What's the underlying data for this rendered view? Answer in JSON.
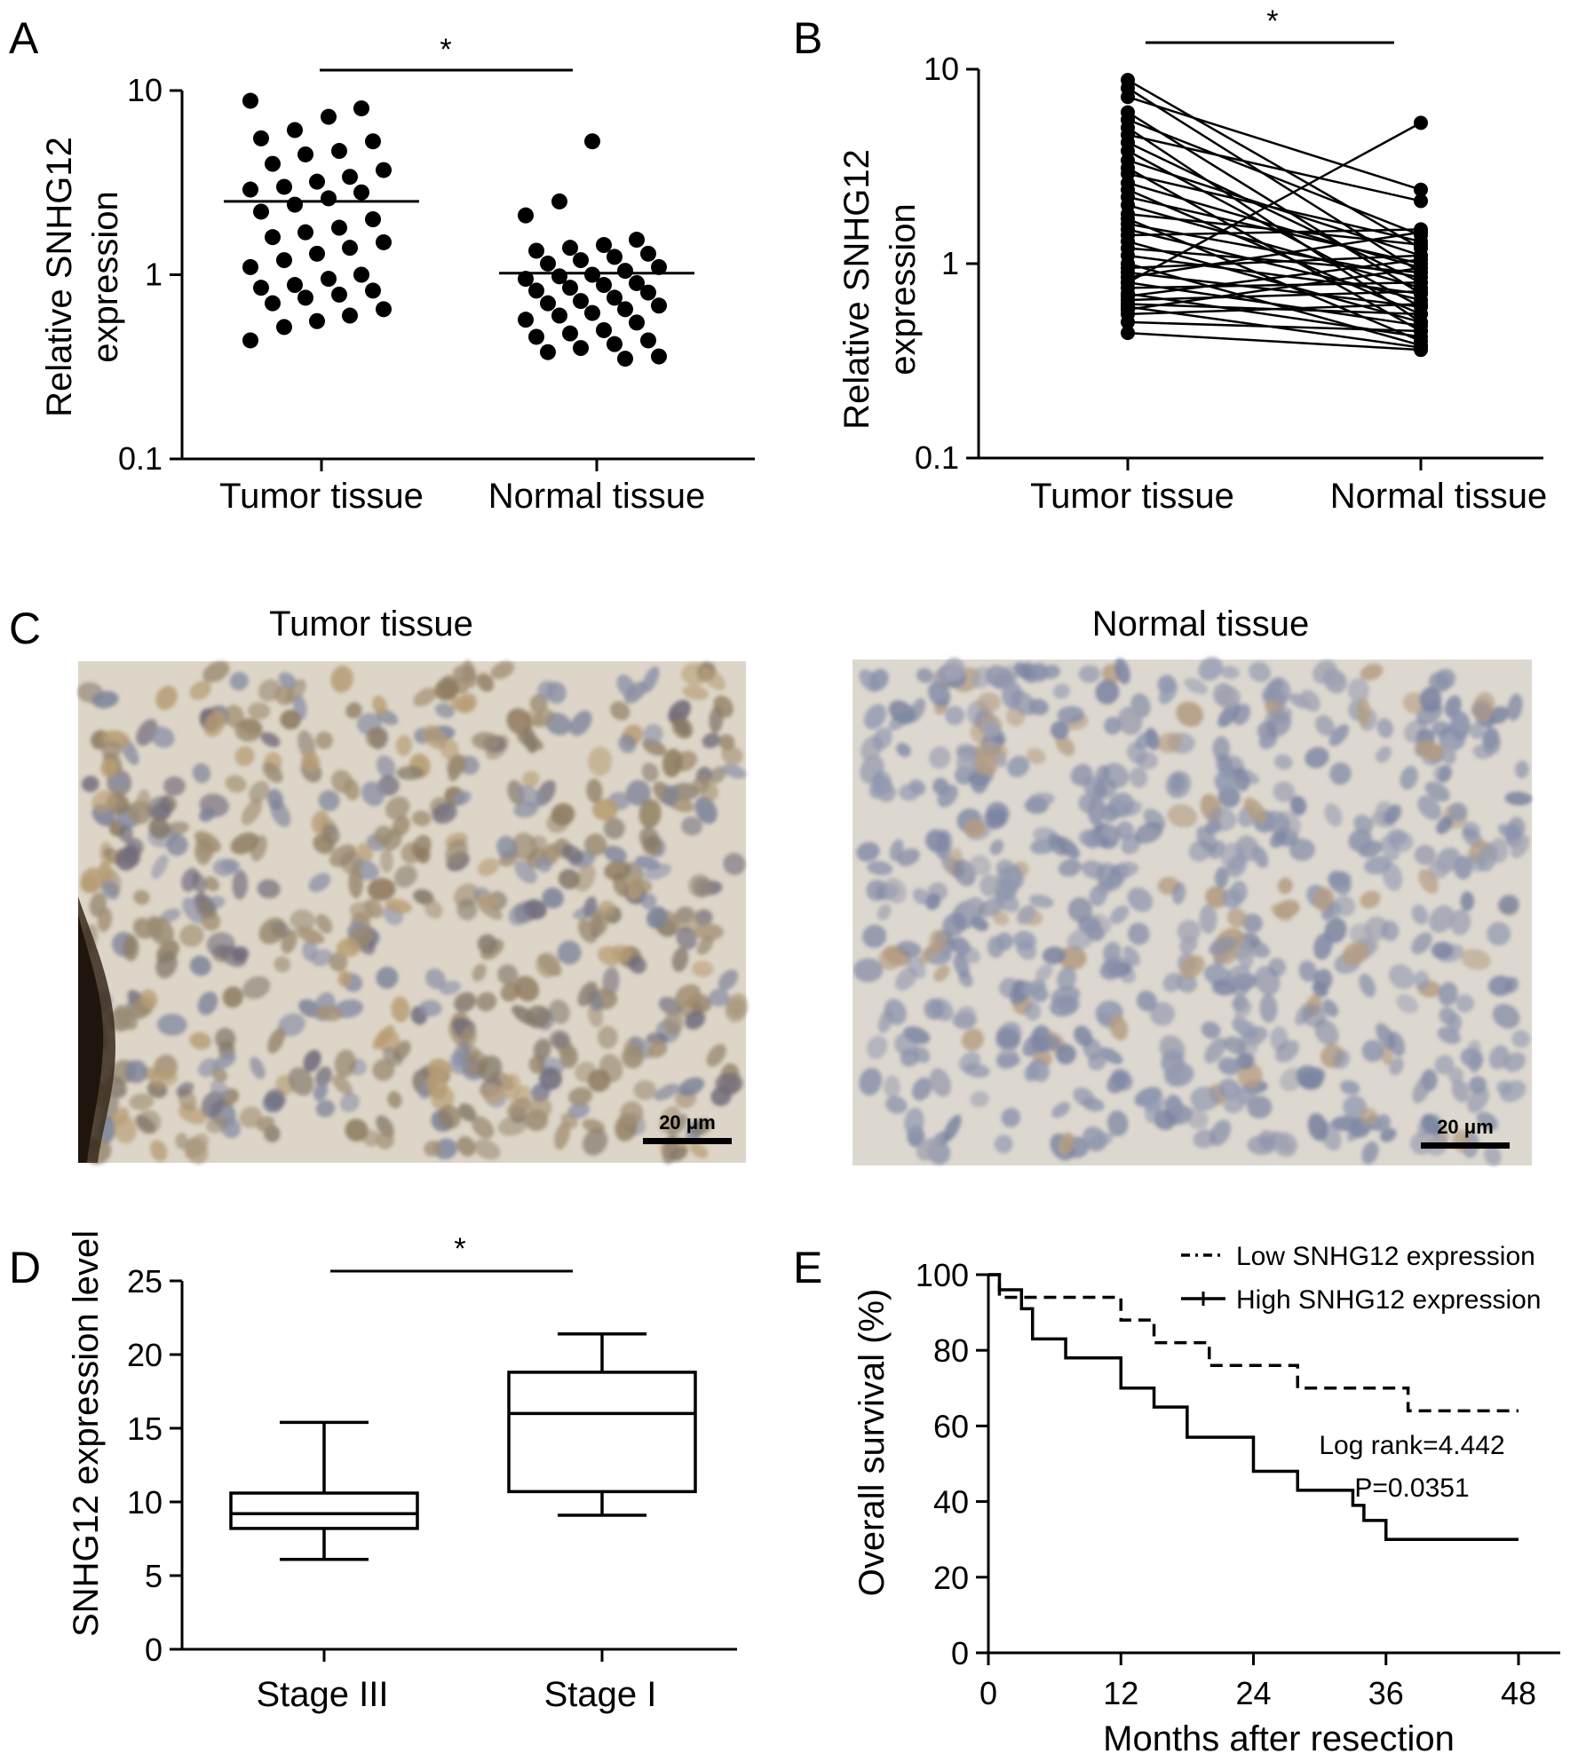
{
  "panels": {
    "A": {
      "letter": "A",
      "ylabel_line1": "Relative SNHG12",
      "ylabel_line2": "expression",
      "significance": "*",
      "chart_data": {
        "type": "scatter",
        "scale": "log",
        "ylim": [
          0.1,
          10
        ],
        "yticks": [
          "0.1",
          "1",
          "10"
        ],
        "categories": [
          "Tumor tissue",
          "Normal tissue"
        ],
        "means": [
          2.5,
          1.02
        ],
        "series": [
          {
            "category": "Tumor tissue",
            "values": [
              8.8,
              8.0,
              7.2,
              6.1,
              5.5,
              5.3,
              4.7,
              4.5,
              4.0,
              3.7,
              3.4,
              3.2,
              3.0,
              2.9,
              2.8,
              2.6,
              2.4,
              2.2,
              2.0,
              1.8,
              1.7,
              1.6,
              1.5,
              1.4,
              1.3,
              1.2,
              1.1,
              1.0,
              0.95,
              0.88,
              0.85,
              0.82,
              0.78,
              0.75,
              0.7,
              0.65,
              0.6,
              0.56,
              0.52,
              0.44
            ]
          },
          {
            "category": "Normal tissue",
            "values": [
              5.3,
              2.5,
              2.1,
              1.55,
              1.45,
              1.4,
              1.35,
              1.3,
              1.25,
              1.2,
              1.15,
              1.1,
              1.05,
              1.0,
              0.98,
              0.95,
              0.9,
              0.88,
              0.85,
              0.82,
              0.8,
              0.75,
              0.72,
              0.7,
              0.68,
              0.65,
              0.62,
              0.6,
              0.57,
              0.55,
              0.5,
              0.48,
              0.46,
              0.44,
              0.42,
              0.4,
              0.38,
              0.36,
              0.35
            ]
          }
        ]
      }
    },
    "B": {
      "letter": "B",
      "ylabel_line1": "Relative SNHG12",
      "ylabel_line2": "expression",
      "significance": "*",
      "chart_data": {
        "type": "line",
        "scale": "log",
        "ylim": [
          0.1,
          10
        ],
        "yticks": [
          "0.1",
          "1",
          "10"
        ],
        "categories": [
          "Tumor tissue",
          "Normal tissue"
        ],
        "pairs": [
          [
            8.8,
            1.2
          ],
          [
            8.0,
            0.9
          ],
          [
            7.2,
            2.4
          ],
          [
            6.0,
            0.7
          ],
          [
            5.5,
            1.4
          ],
          [
            5.0,
            0.5
          ],
          [
            4.6,
            2.1
          ],
          [
            4.2,
            0.8
          ],
          [
            3.8,
            0.6
          ],
          [
            3.4,
            1.1
          ],
          [
            3.1,
            0.45
          ],
          [
            2.9,
            1.3
          ],
          [
            2.6,
            0.95
          ],
          [
            2.4,
            0.55
          ],
          [
            2.2,
            1.0
          ],
          [
            2.0,
            0.75
          ],
          [
            1.8,
            1.25
          ],
          [
            1.7,
            0.4
          ],
          [
            1.6,
            0.85
          ],
          [
            1.5,
            0.65
          ],
          [
            1.4,
            1.5
          ],
          [
            1.3,
            0.5
          ],
          [
            1.2,
            0.9
          ],
          [
            1.1,
            0.7
          ],
          [
            1.0,
            0.38
          ],
          [
            0.95,
            1.1
          ],
          [
            0.9,
            0.6
          ],
          [
            0.85,
            1.45
          ],
          [
            0.8,
            0.48
          ],
          [
            0.75,
            0.8
          ],
          [
            0.7,
            0.42
          ],
          [
            0.68,
            1.05
          ],
          [
            0.65,
            0.72
          ],
          [
            0.62,
            0.55
          ],
          [
            0.6,
            0.37
          ],
          [
            0.58,
            0.95
          ],
          [
            0.55,
            0.62
          ],
          [
            0.5,
            0.45
          ],
          [
            0.44,
            0.36
          ],
          [
            0.8,
            5.3
          ]
        ]
      }
    },
    "C": {
      "letter": "C",
      "images": [
        {
          "title": "Tumor tissue",
          "scale_bar": "20 μm"
        },
        {
          "title": "Normal tissue",
          "scale_bar": "20 μm"
        }
      ]
    },
    "D": {
      "letter": "D",
      "ylabel": "SNHG12 expression level",
      "significance": "*",
      "chart_data": {
        "type": "box",
        "ylim": [
          0,
          25
        ],
        "yticks": [
          "0",
          "5",
          "10",
          "15",
          "20",
          "25"
        ],
        "categories": [
          "Stage III",
          "Stage I"
        ],
        "boxes": [
          {
            "min": 6.1,
            "q1": 8.2,
            "median": 9.2,
            "q3": 10.6,
            "max": 15.4
          },
          {
            "min": 9.1,
            "q1": 10.7,
            "median": 16.0,
            "q3": 18.8,
            "max": 21.4
          }
        ]
      }
    },
    "E": {
      "letter": "E",
      "ylabel": "Overall survival (%)",
      "xlabel": "Months after resection",
      "stat_line1": "Log rank=4.442",
      "stat_line2": "P=0.0351",
      "chart_data": {
        "type": "line",
        "step": true,
        "xlim": [
          0,
          48
        ],
        "ylim": [
          0,
          100
        ],
        "xticks": [
          "0",
          "12",
          "24",
          "36",
          "48"
        ],
        "yticks": [
          "0",
          "20",
          "40",
          "60",
          "80",
          "100"
        ],
        "series": [
          {
            "name": "Low SNHG12 expression",
            "dash": true,
            "x": [
              0,
              1,
              12,
              15,
              20,
              28,
              38,
              48
            ],
            "y": [
              100,
              94,
              88,
              82,
              76,
              70,
              64,
              64
            ]
          },
          {
            "name": "High SNHG12 expression",
            "dash": false,
            "x": [
              0,
              1,
              3,
              4,
              7,
              12,
              15,
              18,
              24,
              28,
              33,
              34,
              36,
              48
            ],
            "y": [
              100,
              96,
              91,
              83,
              78,
              70,
              65,
              57,
              48,
              43,
              39,
              35,
              30,
              30
            ]
          }
        ]
      }
    }
  }
}
